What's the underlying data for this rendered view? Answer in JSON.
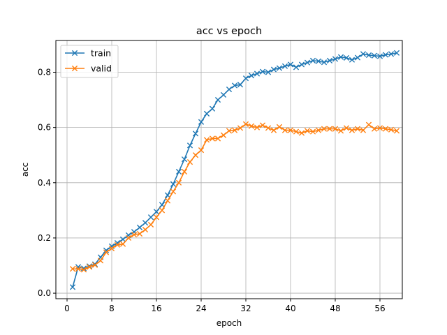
{
  "chart_data": {
    "type": "line",
    "title": "acc vs epoch",
    "xlabel": "epoch",
    "ylabel": "acc",
    "xlim": [
      -2,
      60
    ],
    "ylim": [
      -0.02,
      0.915
    ],
    "xticks": [
      "0",
      "8",
      "16",
      "24",
      "32",
      "40",
      "48",
      "56"
    ],
    "xtick_values": [
      0,
      8,
      16,
      24,
      32,
      40,
      48,
      56
    ],
    "yticks": [
      "0.0",
      "0.2",
      "0.4",
      "0.6",
      "0.8"
    ],
    "ytick_values": [
      0.0,
      0.2,
      0.4,
      0.6,
      0.8
    ],
    "grid": true,
    "legend_position": "top-left",
    "marker": "x",
    "x": [
      1,
      2,
      3,
      4,
      5,
      6,
      7,
      8,
      9,
      10,
      11,
      12,
      13,
      14,
      15,
      16,
      17,
      18,
      19,
      20,
      21,
      22,
      23,
      24,
      25,
      26,
      27,
      28,
      29,
      30,
      31,
      32,
      33,
      34,
      35,
      36,
      37,
      38,
      39,
      40,
      41,
      42,
      43,
      44,
      45,
      46,
      47,
      48,
      49,
      50,
      51,
      52,
      53,
      54,
      55,
      56,
      57,
      58,
      59
    ],
    "series": [
      {
        "name": "train",
        "color": "#1f77b4",
        "values": [
          0.022,
          0.095,
          0.09,
          0.098,
          0.105,
          0.13,
          0.155,
          0.17,
          0.182,
          0.195,
          0.21,
          0.222,
          0.238,
          0.255,
          0.275,
          0.295,
          0.32,
          0.355,
          0.395,
          0.44,
          0.485,
          0.535,
          0.578,
          0.62,
          0.65,
          0.668,
          0.7,
          0.718,
          0.738,
          0.752,
          0.755,
          0.778,
          0.788,
          0.795,
          0.802,
          0.8,
          0.81,
          0.815,
          0.822,
          0.828,
          0.818,
          0.828,
          0.835,
          0.842,
          0.84,
          0.836,
          0.842,
          0.848,
          0.855,
          0.852,
          0.845,
          0.853,
          0.866,
          0.862,
          0.86,
          0.858,
          0.863,
          0.866,
          0.87
        ]
      },
      {
        "name": "valid",
        "color": "#ff7f0e",
        "values": [
          0.088,
          0.088,
          0.085,
          0.095,
          0.102,
          0.118,
          0.148,
          0.162,
          0.175,
          0.178,
          0.2,
          0.212,
          0.215,
          0.23,
          0.248,
          0.275,
          0.3,
          0.335,
          0.368,
          0.4,
          0.44,
          0.475,
          0.5,
          0.518,
          0.555,
          0.56,
          0.56,
          0.572,
          0.588,
          0.59,
          0.598,
          0.612,
          0.605,
          0.6,
          0.608,
          0.598,
          0.59,
          0.602,
          0.59,
          0.59,
          0.585,
          0.58,
          0.588,
          0.585,
          0.59,
          0.595,
          0.595,
          0.595,
          0.588,
          0.598,
          0.59,
          0.595,
          0.59,
          0.61,
          0.595,
          0.598,
          0.595,
          0.592,
          0.588
        ]
      }
    ]
  }
}
